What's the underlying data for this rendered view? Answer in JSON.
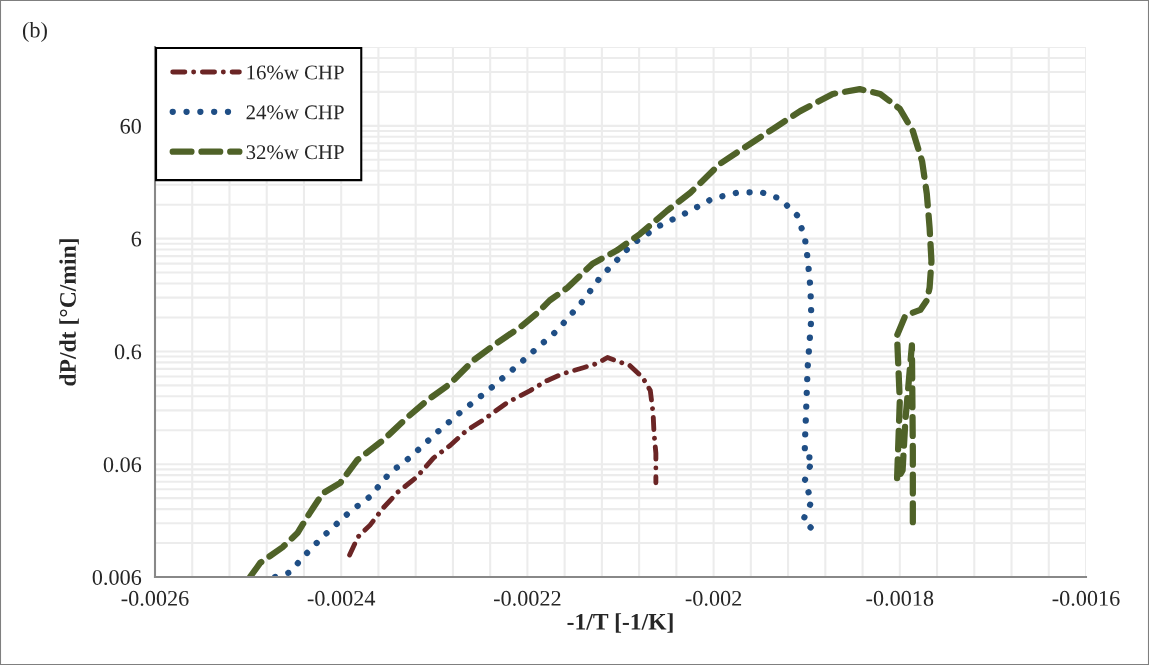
{
  "chart_data": {
    "type": "line",
    "xlabel": "-1/T [-1/K]",
    "ylabel": "dP/dt [°C/min]",
    "annotations": [
      "(b)"
    ],
    "log": "y",
    "grid": true,
    "legend": "top left",
    "xlim": [
      -0.0026,
      -0.0016
    ],
    "xticks": [
      -0.0026,
      -0.0024,
      -0.0022,
      -0.002,
      -0.0018,
      -0.0016
    ],
    "ylim": [
      0.006,
      300
    ],
    "yticks": [
      0.006,
      0.06,
      0.6,
      6,
      60
    ],
    "series": [
      {
        "name": "16%w CHP",
        "color": "#6b2525",
        "line_style": "dashdot",
        "x": [
          -0.002391,
          -0.002382,
          -0.002369,
          -0.002355,
          -0.002339,
          -0.002319,
          -0.002301,
          -0.002283,
          -0.002265,
          -0.002248,
          -0.002222,
          -0.002197,
          -0.002179,
          -0.002162,
          -0.00214,
          -0.002125,
          -0.002114,
          -0.002106,
          -0.00209,
          -0.002076,
          -0.002068,
          -0.002065,
          -0.002064,
          -0.002062,
          -0.002062
        ],
        "values": [
          0.0094,
          0.0136,
          0.0173,
          0.0245,
          0.034,
          0.046,
          0.068,
          0.088,
          0.12,
          0.147,
          0.21,
          0.27,
          0.33,
          0.38,
          0.43,
          0.47,
          0.53,
          0.5,
          0.45,
          0.35,
          0.27,
          0.17,
          0.113,
          0.075,
          0.041
        ]
      },
      {
        "name": "24%w CHP",
        "color": "#1f4e85",
        "line_style": "dotted",
        "x": [
          -0.002471,
          -0.002455,
          -0.002441,
          -0.00242,
          -0.002391,
          -0.002369,
          -0.002348,
          -0.002326,
          -0.002297,
          -0.002272,
          -0.00224,
          -0.002208,
          -0.002189,
          -0.002168,
          -0.00214,
          -0.002122,
          -0.002087,
          -0.002058,
          -0.002029,
          -0.002001,
          -0.001975,
          -0.00195,
          -0.001929,
          -0.00191,
          -0.001902,
          -0.001899,
          -0.001896,
          -0.001895,
          -0.001899,
          -0.001901,
          -0.001902,
          -0.001902,
          -0.001893,
          -0.001903,
          -0.001894,
          -0.001904,
          -0.001894
        ],
        "values": [
          0.006,
          0.0066,
          0.009,
          0.0136,
          0.0226,
          0.031,
          0.05,
          0.069,
          0.115,
          0.173,
          0.28,
          0.47,
          0.65,
          0.92,
          1.7,
          2.7,
          5.4,
          7.8,
          10.2,
          13.6,
          15.3,
          15.6,
          13.6,
          9.6,
          6.1,
          4.0,
          2.2,
          1.2,
          0.43,
          0.147,
          0.092,
          0.069,
          0.069,
          0.041,
          0.029,
          0.019,
          0.016
        ]
      },
      {
        "name": "32%w CHP",
        "color": "#4f6228",
        "line_style": "dashed",
        "x": [
          -0.002498,
          -0.002487,
          -0.002463,
          -0.002447,
          -0.002434,
          -0.00242,
          -0.002401,
          -0.002383,
          -0.002355,
          -0.002329,
          -0.002308,
          -0.002283,
          -0.002258,
          -0.002233,
          -0.002208,
          -0.00219,
          -0.002176,
          -0.002157,
          -0.00213,
          -0.002104,
          -0.002079,
          -0.00205,
          -0.002025,
          -0.001993,
          -0.001964,
          -0.001936,
          -0.001907,
          -0.001872,
          -0.001843,
          -0.001821,
          -0.0018,
          -0.001786,
          -0.001776,
          -0.001771,
          -0.001768,
          -0.001766,
          -0.001768,
          -0.001771,
          -0.001778,
          -0.001794,
          -0.001803,
          -0.0018,
          -0.001803,
          -0.001797,
          -0.001794,
          -0.001787,
          -0.001786,
          -0.001786
        ],
        "values": [
          0.006,
          0.008,
          0.011,
          0.0147,
          0.022,
          0.033,
          0.041,
          0.065,
          0.098,
          0.156,
          0.22,
          0.31,
          0.5,
          0.71,
          0.98,
          1.3,
          1.7,
          2.2,
          3.6,
          4.7,
          6.6,
          10.6,
          15.3,
          27.7,
          39.9,
          56.4,
          81,
          115,
          127,
          115,
          85,
          54,
          29,
          15,
          7.5,
          3.8,
          2.2,
          1.7,
          1.4,
          1.25,
          0.83,
          0.22,
          0.043,
          0.053,
          0.147,
          0.68,
          0.08,
          0.016
        ]
      }
    ]
  }
}
